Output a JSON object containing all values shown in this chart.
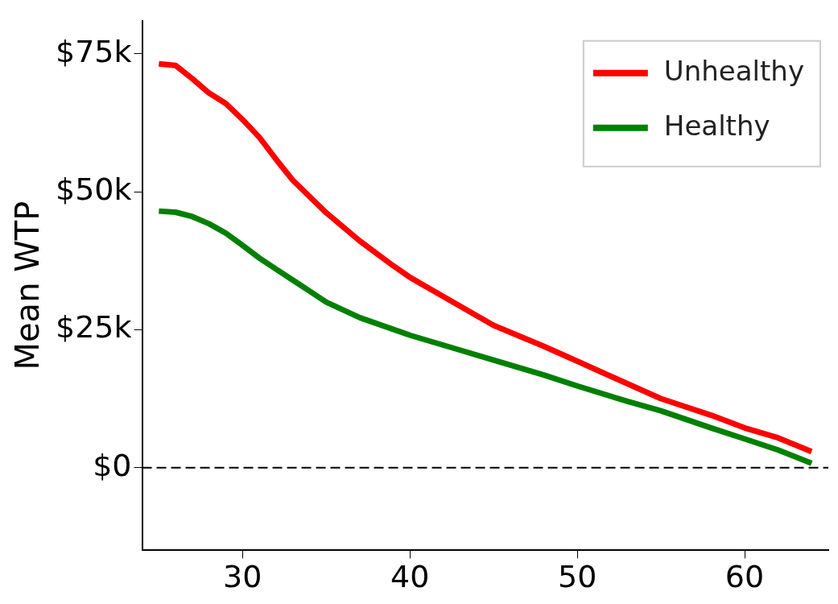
{
  "chart_data": {
    "type": "line",
    "ylabel": "Mean WTP",
    "xlim": [
      24,
      65
    ],
    "xticks": [
      30,
      40,
      50,
      60
    ],
    "ylim": [
      -15000,
      81000
    ],
    "yticks": [
      {
        "value": 0,
        "label": "$0"
      },
      {
        "value": 25000,
        "label": "$25k"
      },
      {
        "value": 50000,
        "label": "$50k"
      },
      {
        "value": 75000,
        "label": "$75k"
      }
    ],
    "grid": false,
    "legend": "top right",
    "marker": "none",
    "line_style": "solid",
    "ref_lines": [
      {
        "axis": "y",
        "value": 0,
        "color": "#000000",
        "line_style": "dashed"
      }
    ],
    "series": [
      {
        "name": "Unhealthy",
        "color": "#ff0000",
        "x": [
          25,
          26,
          27,
          28,
          29,
          30,
          31,
          32,
          33,
          35,
          37,
          39,
          40,
          42,
          45,
          48,
          50,
          53,
          55,
          58,
          60,
          62,
          64
        ],
        "values": [
          73200,
          72900,
          70500,
          67900,
          66000,
          63100,
          59900,
          55900,
          52100,
          46200,
          41100,
          36600,
          34500,
          31000,
          25800,
          22000,
          19300,
          15200,
          12500,
          9500,
          7200,
          5400,
          2900
        ]
      },
      {
        "name": "Healthy",
        "color": "#008000",
        "x": [
          25,
          26,
          27,
          28,
          29,
          30,
          31,
          32,
          33,
          34,
          35,
          37,
          40,
          43,
          45,
          48,
          50,
          53,
          55,
          58,
          60,
          62,
          64
        ],
        "values": [
          46500,
          46300,
          45500,
          44200,
          42500,
          40300,
          38000,
          36000,
          34000,
          32000,
          30000,
          27200,
          24000,
          21300,
          19500,
          16800,
          14800,
          12000,
          10300,
          7200,
          5200,
          3200,
          800
        ]
      }
    ]
  }
}
